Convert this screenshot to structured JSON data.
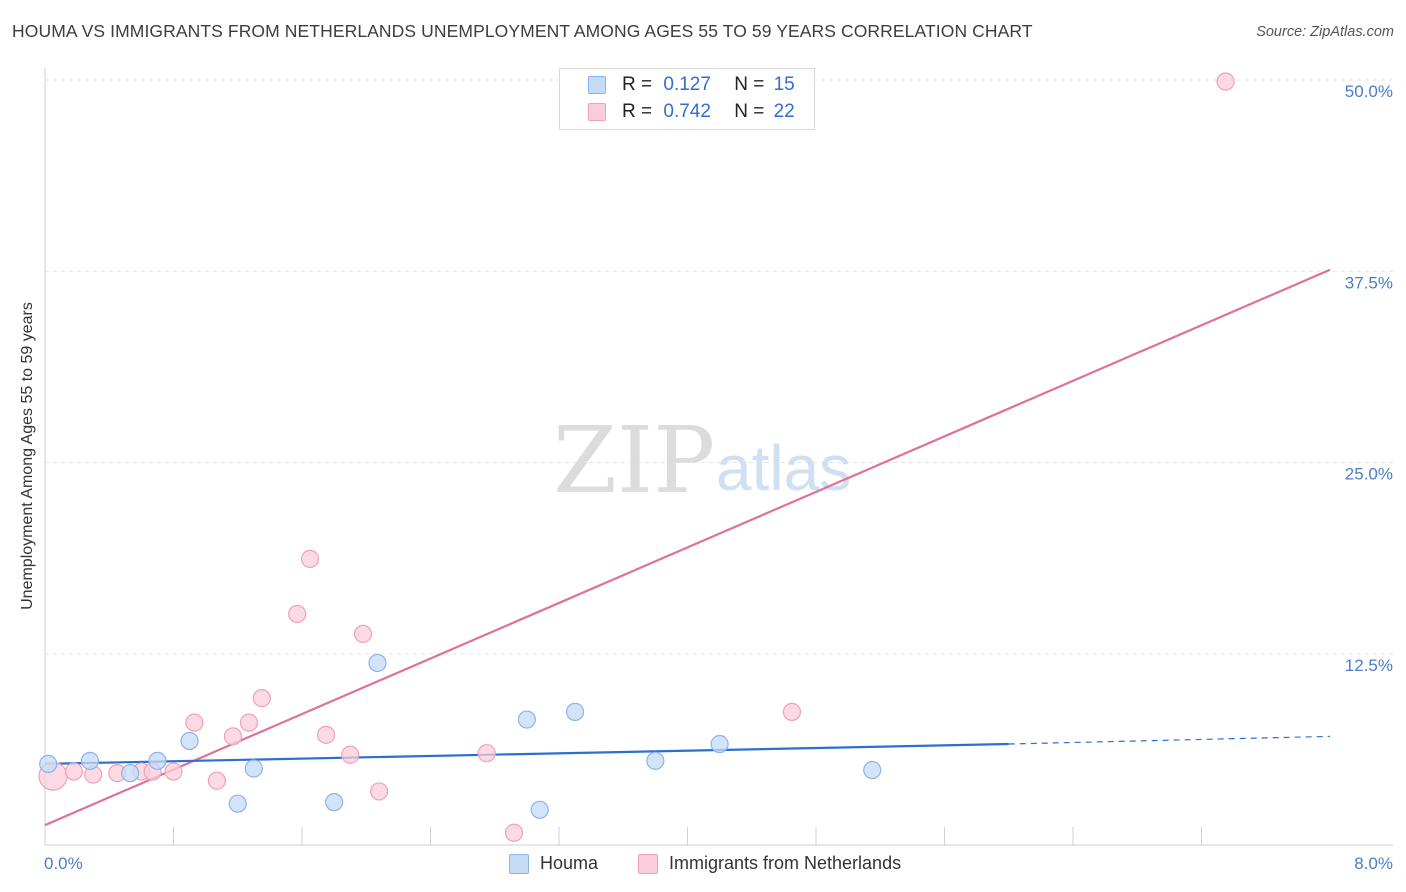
{
  "title": "HOUMA VS IMMIGRANTS FROM NETHERLANDS UNEMPLOYMENT AMONG AGES 55 TO 59 YEARS CORRELATION CHART",
  "source": "Source: ZipAtlas.com",
  "watermark": {
    "zip": "ZIP",
    "atlas": "atlas"
  },
  "legend": {
    "rows": [
      {
        "r_label": "R =",
        "r_value": "0.127",
        "n_label": "N =",
        "n_value": "15"
      },
      {
        "r_label": "R =",
        "r_value": "0.742",
        "n_label": "N =",
        "n_value": "22"
      }
    ]
  },
  "chart_data": {
    "type": "scatter",
    "title": "HOUMA VS IMMIGRANTS FROM NETHERLANDS UNEMPLOYMENT AMONG AGES 55 TO 59 YEARS CORRELATION CHART",
    "xlabel": "",
    "ylabel": "Unemployment Among Ages 55 to 59 years",
    "xlim": [
      0,
      8
    ],
    "ylim": [
      0,
      50
    ],
    "x_tick_labels": [
      "0.0%",
      "8.0%"
    ],
    "y_ticks": [
      12.5,
      25.0,
      37.5,
      50.0
    ],
    "y_tick_labels": [
      "12.5%",
      "25.0%",
      "37.5%",
      "50.0%"
    ],
    "grid": true,
    "legend_position": "top-center",
    "series": [
      {
        "name": "Houma",
        "color": "#8ab4e8",
        "fill": "#c5dbf6",
        "line_color": "#2b6fd0",
        "points": [
          [
            0.02,
            5.3
          ],
          [
            0.28,
            5.5
          ],
          [
            0.53,
            4.7
          ],
          [
            0.7,
            5.5
          ],
          [
            0.9,
            6.8
          ],
          [
            1.2,
            2.7
          ],
          [
            1.3,
            5.0
          ],
          [
            1.8,
            2.8
          ],
          [
            2.07,
            11.9
          ],
          [
            3.0,
            8.2
          ],
          [
            3.08,
            2.3
          ],
          [
            3.3,
            8.7
          ],
          [
            3.8,
            5.5
          ],
          [
            4.2,
            6.6
          ],
          [
            5.15,
            4.9
          ]
        ],
        "trend": {
          "x0": 0.0,
          "y0": 5.3,
          "x1": 6.0,
          "y1": 6.6,
          "dash_to_x": 8.0,
          "dash_to_y": 7.1
        }
      },
      {
        "name": "Immigrants from Netherlands",
        "color": "#f0a0b8",
        "fill": "#f9cdda",
        "line_color": "#e0709a",
        "points": [
          [
            0.05,
            4.5
          ],
          [
            0.18,
            4.8
          ],
          [
            0.3,
            4.6
          ],
          [
            0.45,
            4.7
          ],
          [
            0.6,
            4.8
          ],
          [
            0.67,
            4.8
          ],
          [
            0.8,
            4.8
          ],
          [
            0.93,
            8.0
          ],
          [
            1.07,
            4.2
          ],
          [
            1.17,
            7.1
          ],
          [
            1.27,
            8.0
          ],
          [
            1.35,
            9.6
          ],
          [
            1.57,
            15.1
          ],
          [
            1.65,
            18.7
          ],
          [
            1.75,
            7.2
          ],
          [
            1.9,
            5.9
          ],
          [
            1.98,
            13.8
          ],
          [
            2.08,
            3.5
          ],
          [
            2.75,
            6.0
          ],
          [
            2.92,
            0.8
          ],
          [
            4.65,
            8.7
          ],
          [
            7.35,
            49.9
          ]
        ],
        "trend": {
          "x0": 0.0,
          "y0": 1.3,
          "x1": 8.0,
          "y1": 37.6
        }
      }
    ]
  },
  "bottom_legend": [
    {
      "label": "Houma"
    },
    {
      "label": "Immigrants from Netherlands"
    }
  ]
}
